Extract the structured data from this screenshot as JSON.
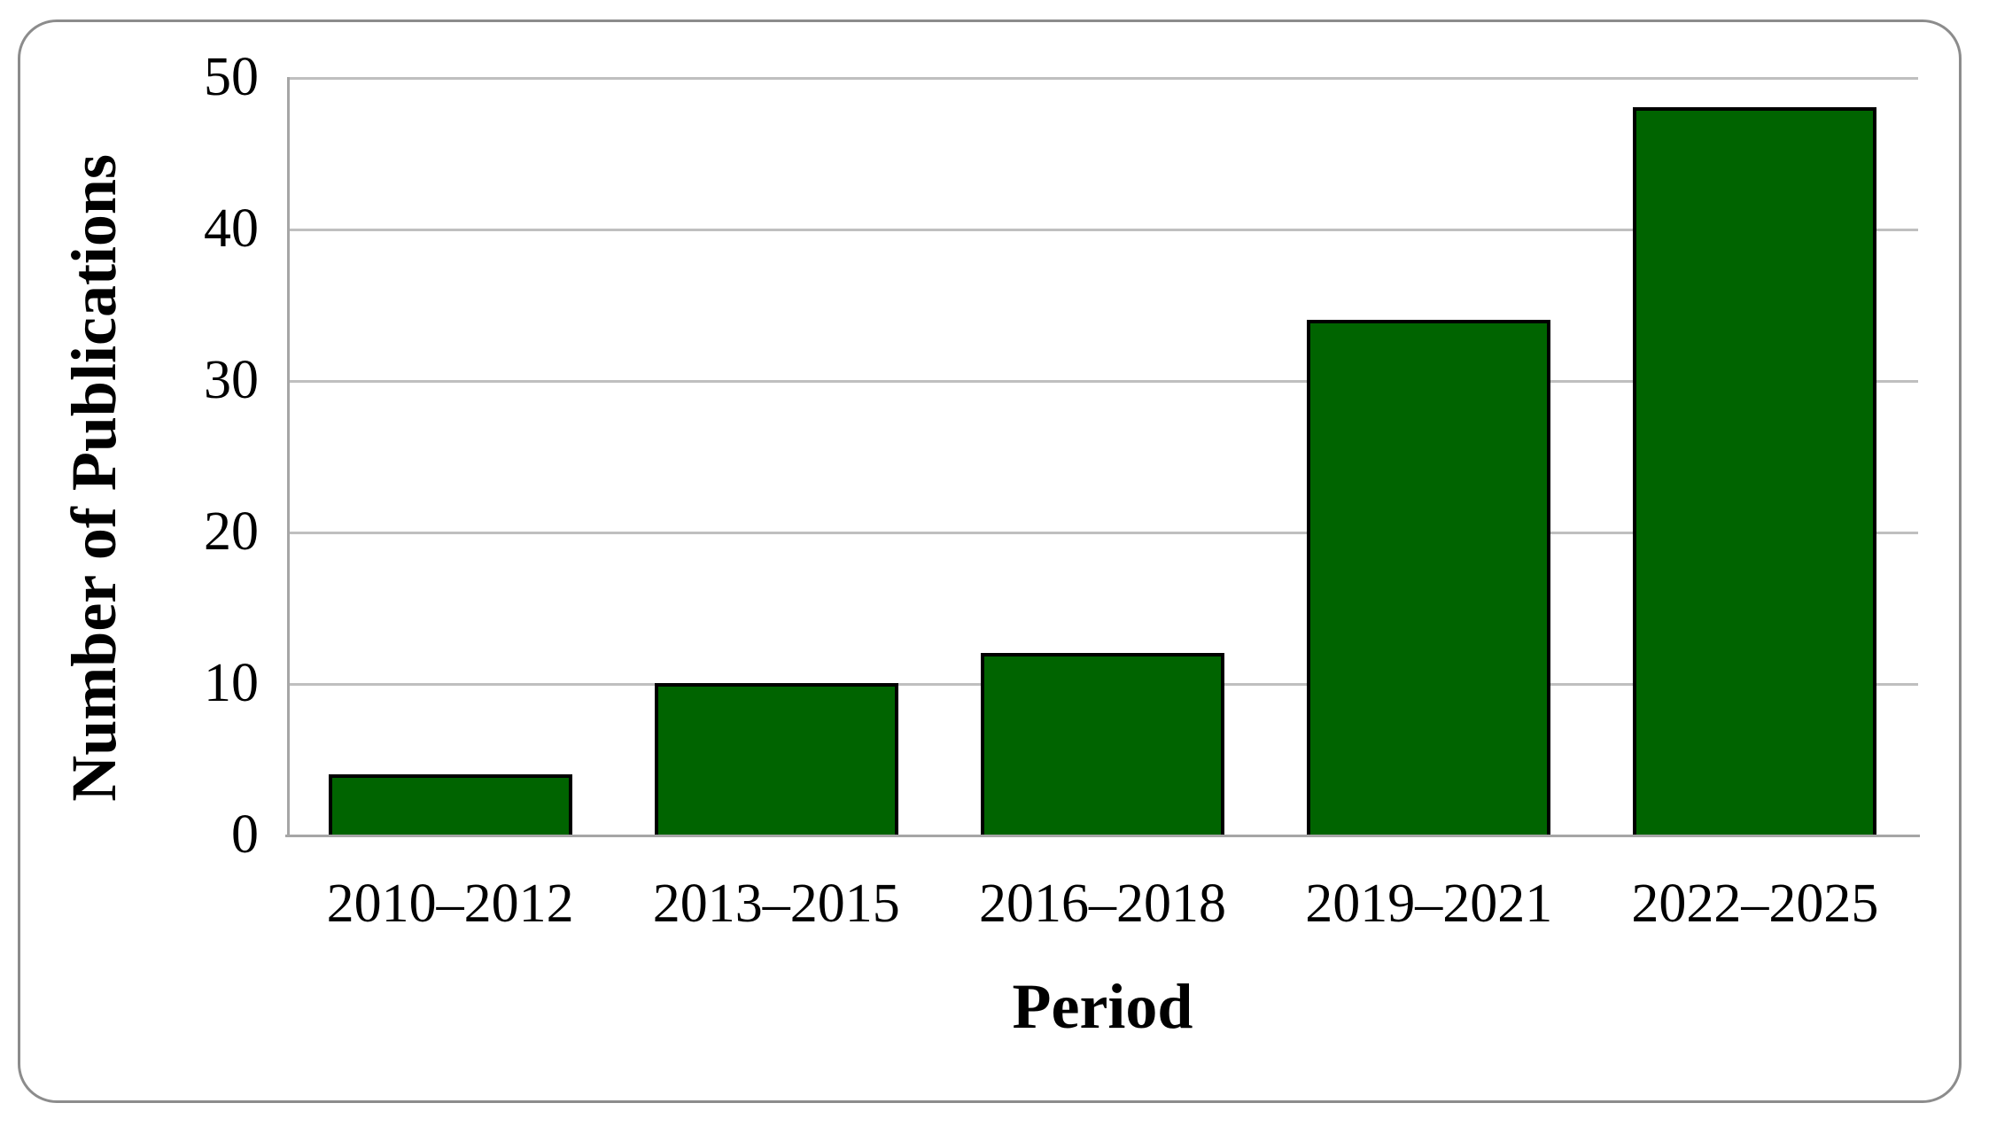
{
  "chart_data": {
    "type": "bar",
    "title": "",
    "categories": [
      "2010–2012",
      "2013–2015",
      "2016–2018",
      "2019–2021",
      "2022–2025"
    ],
    "values": [
      4,
      10,
      12,
      34,
      48
    ],
    "xlabel": "Period",
    "ylabel": "Number of Publications",
    "ylim": [
      0,
      50
    ],
    "yticks": [
      0,
      10,
      20,
      30,
      40,
      50
    ],
    "grid": true,
    "legend": false,
    "bar_color": "#006400",
    "bar_border_color": "#000000",
    "gridline_color": "#BFBFBF",
    "axis_line_color": "#A6A6A6",
    "frame_border_color": "#8C8C8C",
    "text_color": "#000000"
  }
}
